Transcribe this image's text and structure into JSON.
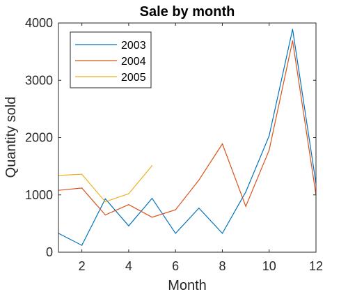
{
  "chart_data": {
    "type": "line",
    "title": "Sale by month",
    "xlabel": "Month",
    "ylabel": "Quantity sold",
    "xlim": [
      1,
      12
    ],
    "ylim": [
      0,
      4000
    ],
    "xticks": [
      "2",
      "4",
      "6",
      "8",
      "10",
      "12"
    ],
    "yticks": [
      "0",
      "1000",
      "2000",
      "3000",
      "4000"
    ],
    "grid": false,
    "legend_position": "top-left",
    "series": [
      {
        "name": "2003",
        "color": "#0072bd",
        "x": [
          1,
          2,
          3,
          4,
          5,
          6,
          7,
          8,
          9,
          10,
          11,
          12
        ],
        "y": [
          330,
          120,
          930,
          460,
          940,
          330,
          770,
          330,
          1050,
          2030,
          3890,
          1200
        ]
      },
      {
        "name": "2004",
        "color": "#d95319",
        "x": [
          1,
          2,
          3,
          4,
          5,
          6,
          7,
          8,
          9,
          10,
          11,
          12
        ],
        "y": [
          1080,
          1120,
          650,
          830,
          610,
          740,
          1260,
          1890,
          800,
          1780,
          3690,
          1000
        ]
      },
      {
        "name": "2005",
        "color": "#edb120",
        "x": [
          1,
          2,
          3,
          4,
          5
        ],
        "y": [
          1340,
          1360,
          880,
          1020,
          1510
        ]
      }
    ]
  }
}
